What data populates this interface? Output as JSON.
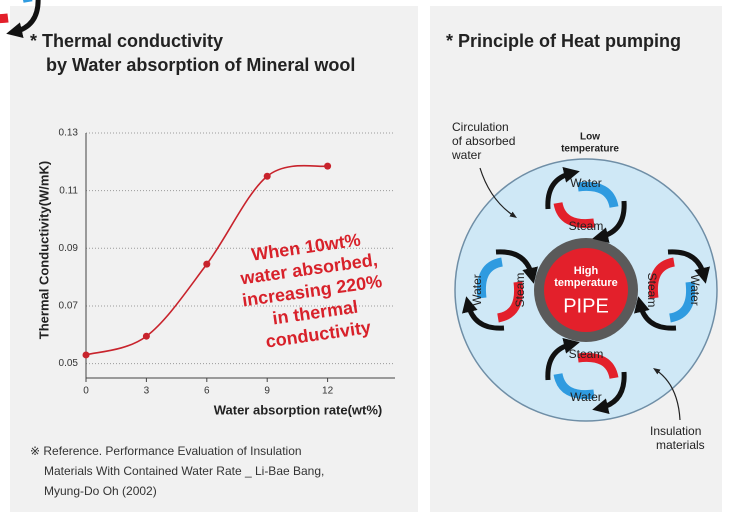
{
  "chart_data": {
    "type": "line",
    "title": [
      "* Thermal conductivity",
      "by Water absorption of Mineral wool"
    ],
    "x_label": "Water absorption rate(wt%)",
    "y_label": "Thermal Conductivity(W/mK)",
    "x": [
      0,
      3,
      6,
      9,
      12
    ],
    "series": [
      {
        "color": "#c8232c",
        "values": [
          0.053,
          0.0595,
          0.0845,
          0.115,
          0.1185
        ]
      }
    ],
    "xlim": [
      0,
      15
    ],
    "xticks": [
      0,
      3,
      6,
      9,
      12
    ],
    "ylim": [
      0.045,
      0.13
    ],
    "yticks": [
      0.05,
      0.07,
      0.09,
      0.11,
      0.13
    ],
    "grid": true,
    "annotation": [
      "When 10wt%",
      "water absorbed,",
      "increasing 220%",
      "in thermal",
      "conductivity"
    ],
    "note": [
      "※ Reference. Performance Evaluation of Insulation",
      "Materials With Contained Water Rate _ Li-Bae Bang,",
      "Myung-Do Oh (2002)"
    ]
  },
  "diagram": {
    "title": "* Principle of Heat pumping",
    "circulation_label": [
      "Circulation",
      "of absorbed",
      "water"
    ],
    "low_label": [
      "Low",
      "temperature"
    ],
    "pipe_label": [
      "High",
      "temperature"
    ],
    "pipe": "PIPE",
    "insulation_label": [
      "Insulation",
      "materials"
    ],
    "water": "Water",
    "steam": "Steam"
  }
}
